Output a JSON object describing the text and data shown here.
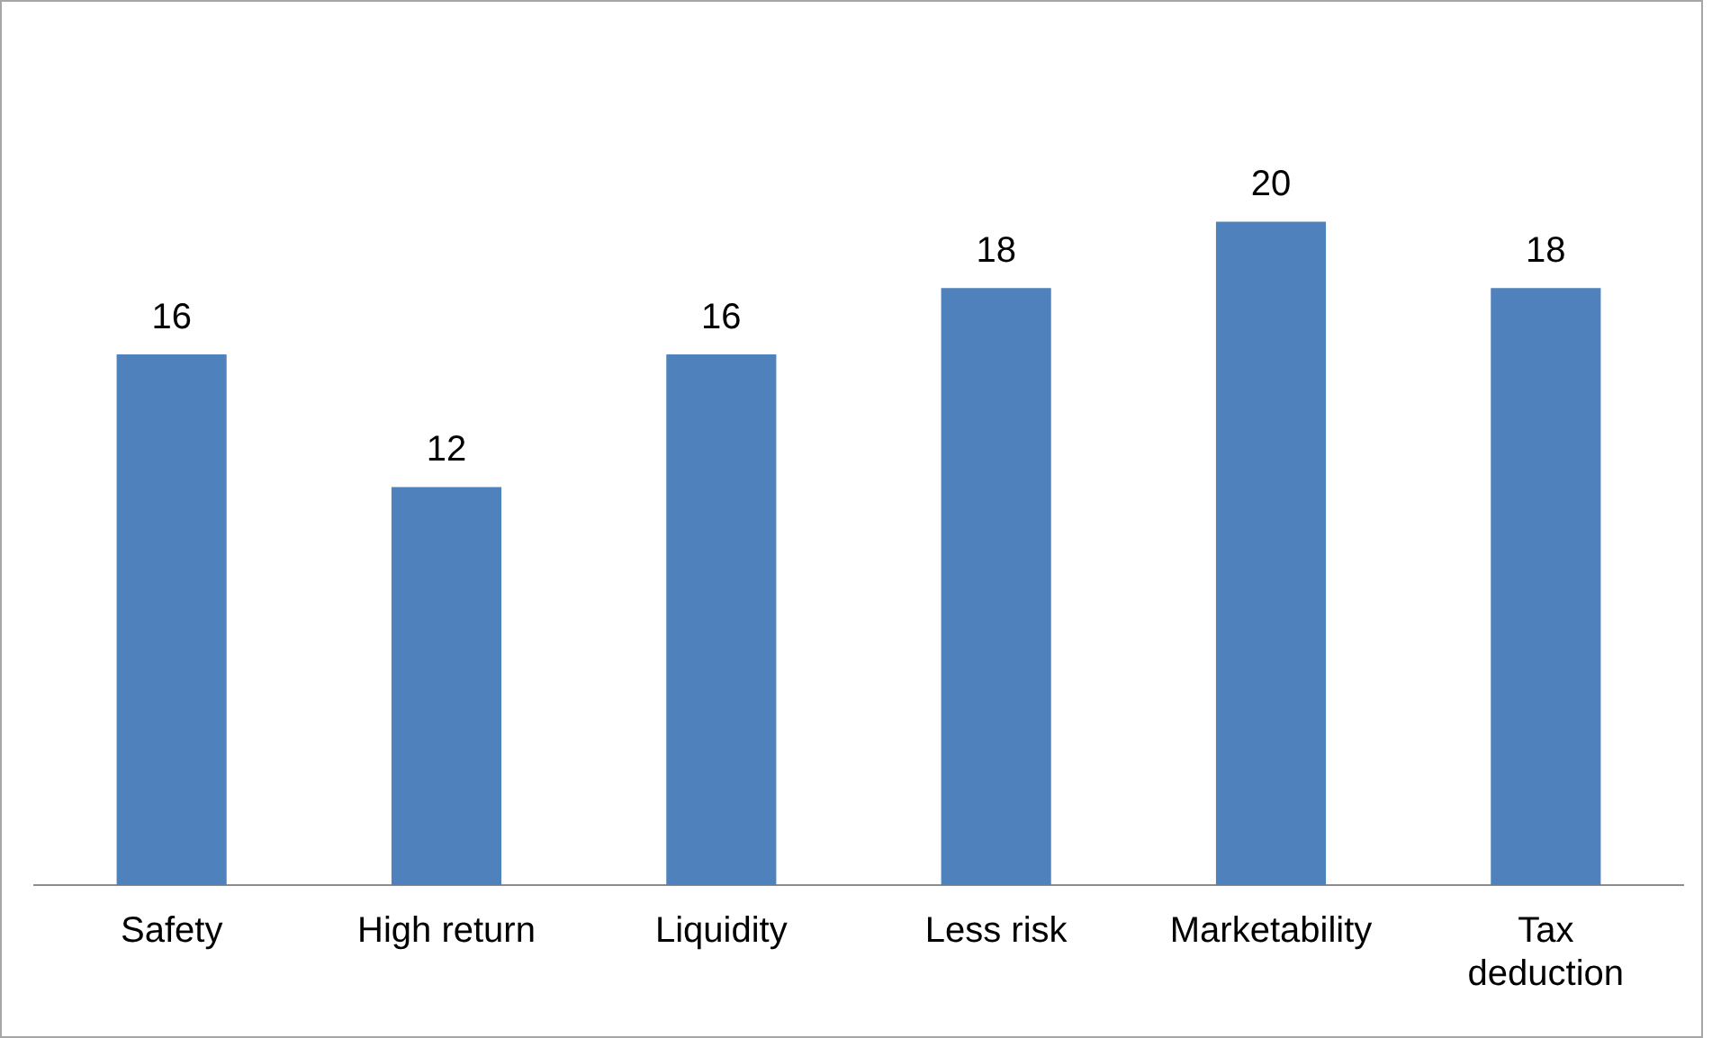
{
  "chart_data": {
    "type": "bar",
    "categories": [
      "Safety",
      "High return",
      "Liquidity",
      "Less risk",
      "Marketability",
      "Tax deduction"
    ],
    "values": [
      16,
      12,
      16,
      18,
      20,
      18
    ],
    "color": "#4f81bd",
    "data_labels": true,
    "grid": false,
    "legend": false
  }
}
